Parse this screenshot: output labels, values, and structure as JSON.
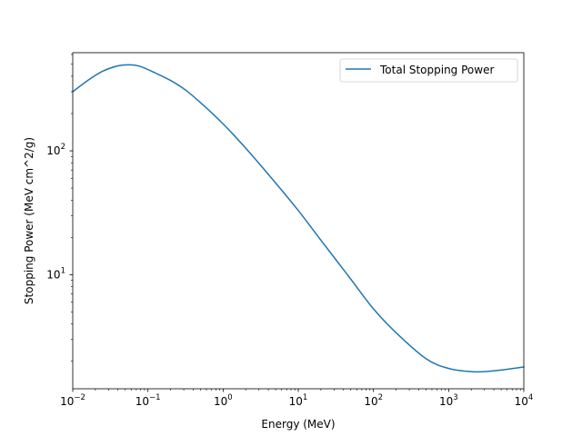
{
  "chart_data": {
    "type": "line",
    "title": "",
    "xlabel": "Energy (MeV)",
    "ylabel": "Stopping Power (MeV cm^2/g)",
    "xscale": "log",
    "yscale": "log",
    "xlim": [
      0.01,
      10000
    ],
    "ylim": [
      1.2,
      620
    ],
    "grid": false,
    "legend_position": "top-right",
    "x_ticks": [
      {
        "base": "10",
        "exp": "−2",
        "value": 0.01
      },
      {
        "base": "10",
        "exp": "−1",
        "value": 0.1
      },
      {
        "base": "10",
        "exp": "0",
        "value": 1
      },
      {
        "base": "10",
        "exp": "1",
        "value": 10
      },
      {
        "base": "10",
        "exp": "2",
        "value": 100
      },
      {
        "base": "10",
        "exp": "3",
        "value": 1000
      },
      {
        "base": "10",
        "exp": "4",
        "value": 10000
      }
    ],
    "y_ticks": [
      {
        "base": "10",
        "exp": "1",
        "value": 10
      },
      {
        "base": "10",
        "exp": "2",
        "value": 100
      }
    ],
    "series": [
      {
        "name": "Total Stopping Power",
        "color": "#1f77b4",
        "x": [
          0.01,
          0.0158,
          0.0251,
          0.0398,
          0.0575,
          0.0794,
          0.126,
          0.2,
          0.316,
          0.5,
          1,
          2,
          5,
          10,
          20,
          50,
          100,
          200,
          500,
          1000,
          2000,
          3000,
          5000,
          10000
        ],
        "y": [
          300,
          370,
          440,
          485,
          495,
          480,
          425,
          370,
          310,
          245,
          165,
          105,
          55,
          33,
          19,
          9.2,
          5.3,
          3.4,
          2.1,
          1.75,
          1.65,
          1.65,
          1.7,
          1.8
        ]
      }
    ]
  }
}
